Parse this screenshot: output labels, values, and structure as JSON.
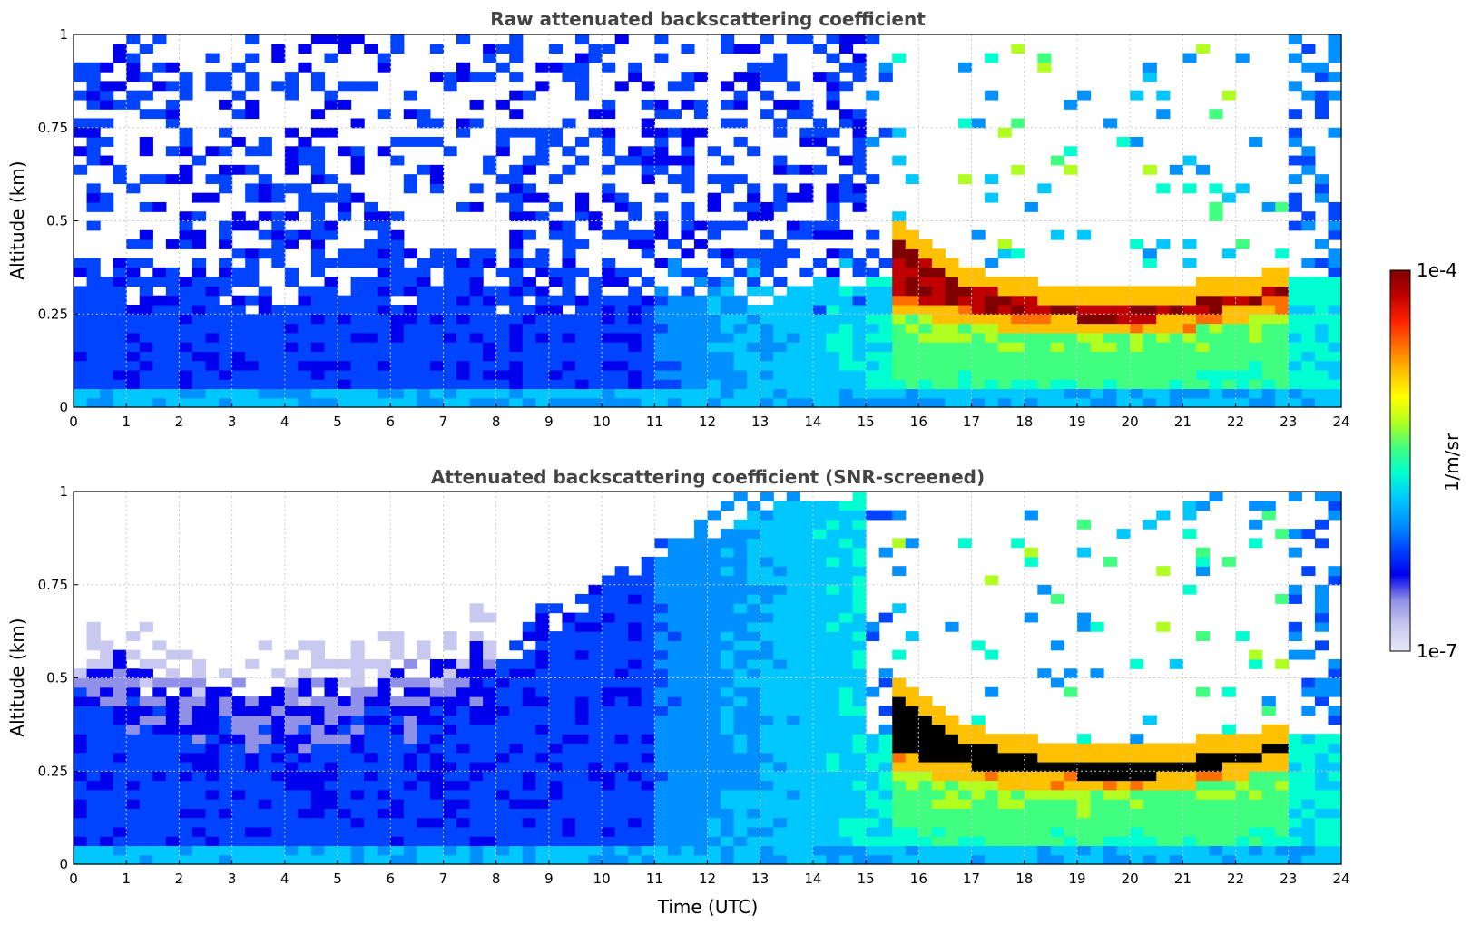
{
  "colors": {
    "colormap": [
      "#e8e8f8",
      "#c8c8f0",
      "#9090e8",
      "#0000ee",
      "#0044ff",
      "#0090ff",
      "#00c8ff",
      "#00ffd0",
      "#40ff80",
      "#b0ff20",
      "#ffff00",
      "#ffc000",
      "#ff7000",
      "#ff2000",
      "#c00000",
      "#800000"
    ],
    "saturated": "#000000"
  },
  "colorbar": {
    "max_label": "1e-4",
    "min_label": "1e-7",
    "unit_label": "1/m/sr"
  },
  "chart_data": [
    {
      "type": "heatmap",
      "title": "Raw attenuated backscattering coefficient",
      "xlabel": "",
      "ylabel": "Altitude (km)",
      "xlim": [
        0,
        24
      ],
      "ylim": [
        0,
        1
      ],
      "xticks": [
        "0",
        "1",
        "2",
        "3",
        "4",
        "5",
        "6",
        "7",
        "8",
        "9",
        "10",
        "11",
        "12",
        "13",
        "14",
        "15",
        "16",
        "17",
        "18",
        "19",
        "20",
        "21",
        "22",
        "23",
        "24"
      ],
      "yticks": [
        {
          "value": 0,
          "label": "0"
        },
        {
          "value": 0.25,
          "label": "0.25"
        },
        {
          "value": 0.5,
          "label": "0.5"
        },
        {
          "value": 0.75,
          "label": "0.75"
        },
        {
          "value": 1,
          "label": "1"
        }
      ],
      "grid": true,
      "colorscale": "log",
      "zlim": [
        1e-07,
        0.0001
      ],
      "features": [
        {
          "name": "surface layer",
          "x": [
            0,
            24
          ],
          "y": [
            0,
            0.25
          ]
        },
        {
          "name": "cloud base layer",
          "x": [
            15.5,
            23
          ],
          "y_top": [
            0.45,
            0.35,
            0.3,
            0.28,
            0.27,
            0.28,
            0.3,
            0.32
          ],
          "y_bottom": [
            0.3,
            0.27,
            0.25,
            0.24,
            0.23,
            0.24,
            0.27,
            0.3
          ]
        }
      ]
    },
    {
      "type": "heatmap",
      "title": "Attenuated backscattering coefficient (SNR-screened)",
      "xlabel": "Time (UTC)",
      "ylabel": "Altitude (km)",
      "xlim": [
        0,
        24
      ],
      "ylim": [
        0,
        1
      ],
      "xticks": [
        "0",
        "1",
        "2",
        "3",
        "4",
        "5",
        "6",
        "7",
        "8",
        "9",
        "10",
        "11",
        "12",
        "13",
        "14",
        "15",
        "16",
        "17",
        "18",
        "19",
        "20",
        "21",
        "22",
        "23",
        "24"
      ],
      "yticks": [
        {
          "value": 0,
          "label": "0"
        },
        {
          "value": 0.25,
          "label": "0.25"
        },
        {
          "value": 0.5,
          "label": "0.5"
        },
        {
          "value": 0.75,
          "label": "0.75"
        },
        {
          "value": 1,
          "label": "1"
        }
      ],
      "grid": true,
      "colorscale": "log",
      "zlim": [
        1e-07,
        0.0001
      ],
      "features": [
        {
          "name": "boundary layer top",
          "x": [
            0,
            2,
            4,
            6,
            8,
            10,
            12,
            14
          ],
          "y": [
            0.55,
            0.5,
            0.45,
            0.55,
            0.5,
            0.75,
            0.9,
            1.0
          ]
        },
        {
          "name": "cloud base layer",
          "x": [
            15.5,
            23
          ],
          "y_top": [
            0.45,
            0.35,
            0.3,
            0.28,
            0.27,
            0.28,
            0.3,
            0.32
          ],
          "y_bottom": [
            0.3,
            0.27,
            0.25,
            0.24,
            0.23,
            0.24,
            0.27,
            0.3
          ]
        }
      ]
    }
  ]
}
